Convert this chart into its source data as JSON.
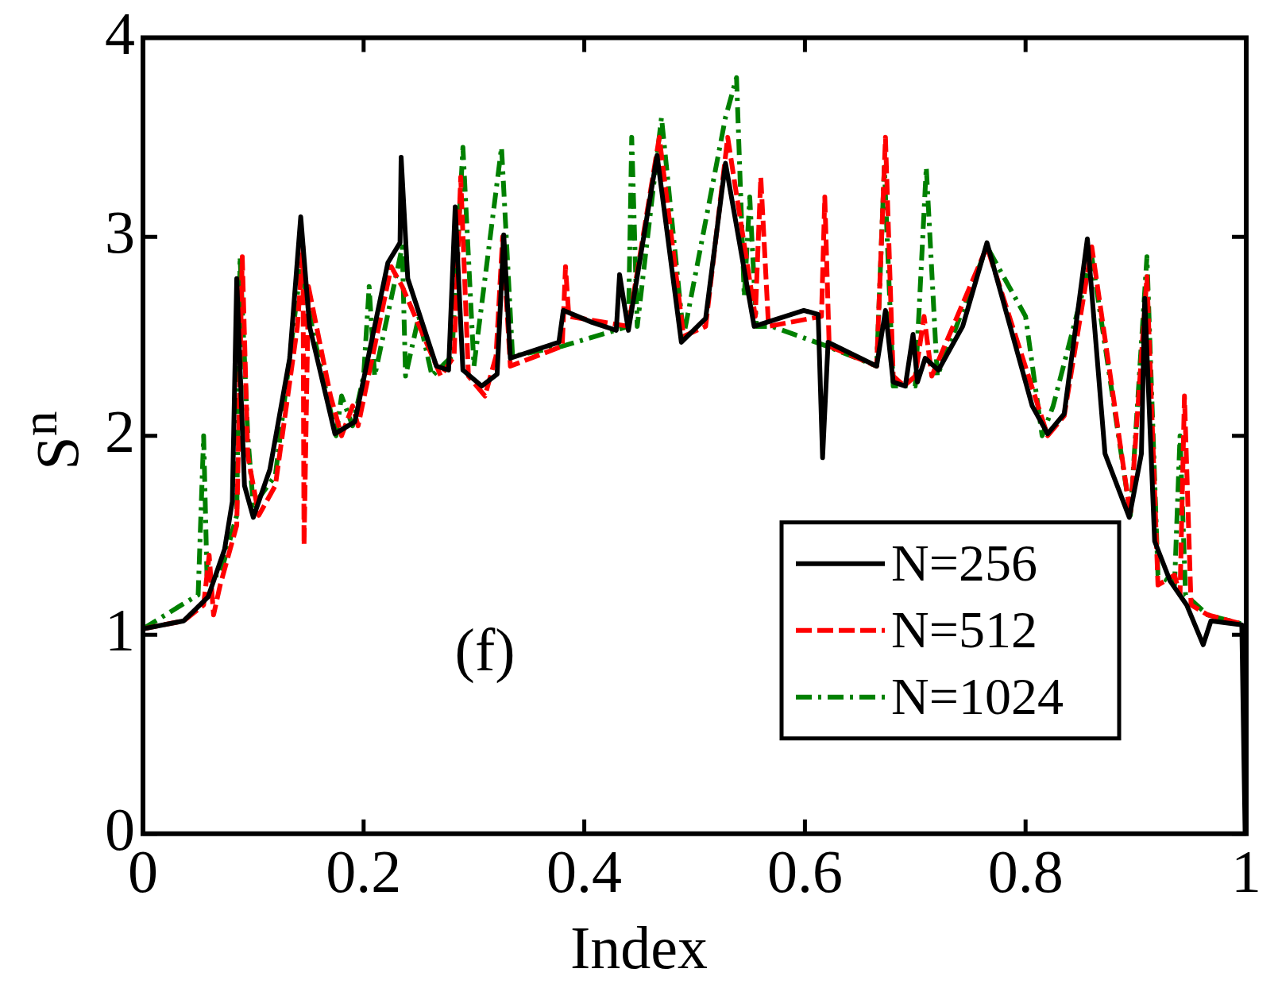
{
  "chart_data": {
    "type": "line",
    "xlabel": "Index",
    "ylabel": "S$^{n}$",
    "xlim": [
      0,
      1
    ],
    "xticks": [
      0,
      0.2,
      0.4,
      0.6,
      0.8,
      1
    ],
    "ylim": [
      0,
      4
    ],
    "yticks": [
      0,
      1,
      2,
      3,
      4
    ],
    "legend": "bottom right",
    "annotations": [
      "(f)"
    ],
    "series": [
      {
        "name": "N=256",
        "color": "#000000",
        "line_style": "solid",
        "x": [
          0,
          0.037,
          0.059,
          0.074,
          0.081,
          0.085,
          0.092,
          0.1,
          0.115,
          0.133,
          0.143,
          0.151,
          0.174,
          0.192,
          0.222,
          0.233,
          0.234,
          0.24,
          0.266,
          0.277,
          0.283,
          0.29,
          0.307,
          0.321,
          0.327,
          0.333,
          0.377,
          0.381,
          0.407,
          0.429,
          0.432,
          0.44,
          0.466,
          0.488,
          0.51,
          0.528,
          0.554,
          0.599,
          0.612,
          0.616,
          0.621,
          0.665,
          0.673,
          0.68,
          0.691,
          0.698,
          0.702,
          0.709,
          0.721,
          0.743,
          0.765,
          0.806,
          0.82,
          0.835,
          0.856,
          0.872,
          0.894,
          0.905,
          0.908,
          0.917,
          0.931,
          0.946,
          0.961,
          0.968,
          0.996,
          0.999
        ],
        "values": [
          1.03,
          1.07,
          1.19,
          1.43,
          1.67,
          2.79,
          1.75,
          1.59,
          1.83,
          2.39,
          3.1,
          2.55,
          2.01,
          2.07,
          2.87,
          2.97,
          3.4,
          2.79,
          2.35,
          2.33,
          3.15,
          2.33,
          2.25,
          2.31,
          3.01,
          2.39,
          2.47,
          2.63,
          2.57,
          2.53,
          2.81,
          2.53,
          3.41,
          2.47,
          2.59,
          3.37,
          2.55,
          2.63,
          2.61,
          1.89,
          2.47,
          2.35,
          2.63,
          2.27,
          2.25,
          2.51,
          2.27,
          2.39,
          2.33,
          2.55,
          2.97,
          2.15,
          2.01,
          2.11,
          2.99,
          1.91,
          1.59,
          1.91,
          2.69,
          1.47,
          1.27,
          1.15,
          0.95,
          1.07,
          1.05,
          0
        ]
      },
      {
        "name": "N=512",
        "color": "#ff0000",
        "line_style": "dashed",
        "x": [
          0,
          0.037,
          0.055,
          0.06,
          0.064,
          0.07,
          0.085,
          0.09,
          0.095,
          0.105,
          0.12,
          0.14,
          0.145,
          0.146,
          0.15,
          0.17,
          0.18,
          0.19,
          0.195,
          0.225,
          0.235,
          0.27,
          0.282,
          0.288,
          0.295,
          0.31,
          0.32,
          0.326,
          0.333,
          0.38,
          0.383,
          0.386,
          0.44,
          0.468,
          0.49,
          0.51,
          0.53,
          0.555,
          0.56,
          0.567,
          0.615,
          0.618,
          0.622,
          0.665,
          0.673,
          0.68,
          0.69,
          0.7,
          0.708,
          0.715,
          0.765,
          0.82,
          0.835,
          0.86,
          0.895,
          0.91,
          0.92,
          0.935,
          0.94,
          0.944,
          0.95,
          0.965,
          0.999
        ],
        "values": [
          1.03,
          1.07,
          1.15,
          1.4,
          1.1,
          1.25,
          1.55,
          2.9,
          1.9,
          1.6,
          1.75,
          2.55,
          2.95,
          1.45,
          2.75,
          2.2,
          2.0,
          2.15,
          2.05,
          2.85,
          2.75,
          2.3,
          2.4,
          3.3,
          2.3,
          2.2,
          2.4,
          3.0,
          2.35,
          2.45,
          2.85,
          2.6,
          2.55,
          3.5,
          2.5,
          2.55,
          3.5,
          2.6,
          3.3,
          2.55,
          2.6,
          3.2,
          2.45,
          2.35,
          3.5,
          2.3,
          2.25,
          2.3,
          2.6,
          2.3,
          2.95,
          2.0,
          2.1,
          2.95,
          1.6,
          2.8,
          1.25,
          1.3,
          1.2,
          2.2,
          1.15,
          1.1,
          1.05
        ]
      },
      {
        "name": "N=1024",
        "color": "#008000",
        "line_style": "dotted",
        "x": [
          0,
          0.035,
          0.05,
          0.055,
          0.058,
          0.07,
          0.085,
          0.088,
          0.095,
          0.1,
          0.12,
          0.143,
          0.155,
          0.175,
          0.18,
          0.19,
          0.2,
          0.205,
          0.21,
          0.235,
          0.238,
          0.25,
          0.262,
          0.28,
          0.29,
          0.3,
          0.325,
          0.335,
          0.38,
          0.44,
          0.443,
          0.448,
          0.47,
          0.49,
          0.528,
          0.538,
          0.545,
          0.55,
          0.556,
          0.57,
          0.62,
          0.665,
          0.672,
          0.68,
          0.7,
          0.71,
          0.72,
          0.765,
          0.8,
          0.815,
          0.825,
          0.86,
          0.895,
          0.91,
          0.92,
          0.935,
          0.94,
          0.945,
          0.965,
          0.999
        ],
        "values": [
          1.03,
          1.15,
          1.2,
          2.0,
          1.3,
          1.3,
          1.6,
          2.9,
          2.0,
          1.65,
          1.8,
          2.85,
          2.5,
          2.0,
          2.2,
          2.05,
          2.3,
          2.75,
          2.3,
          2.95,
          2.3,
          2.6,
          2.3,
          2.4,
          3.45,
          2.35,
          3.45,
          2.4,
          2.45,
          2.55,
          3.5,
          2.55,
          3.6,
          2.5,
          3.6,
          3.8,
          2.7,
          3.2,
          2.55,
          2.55,
          2.45,
          2.35,
          3.35,
          2.25,
          2.25,
          3.35,
          2.3,
          2.95,
          2.6,
          2.0,
          2.15,
          2.9,
          1.6,
          2.9,
          1.3,
          1.25,
          2.0,
          1.2,
          1.1,
          1.05
        ]
      }
    ]
  }
}
